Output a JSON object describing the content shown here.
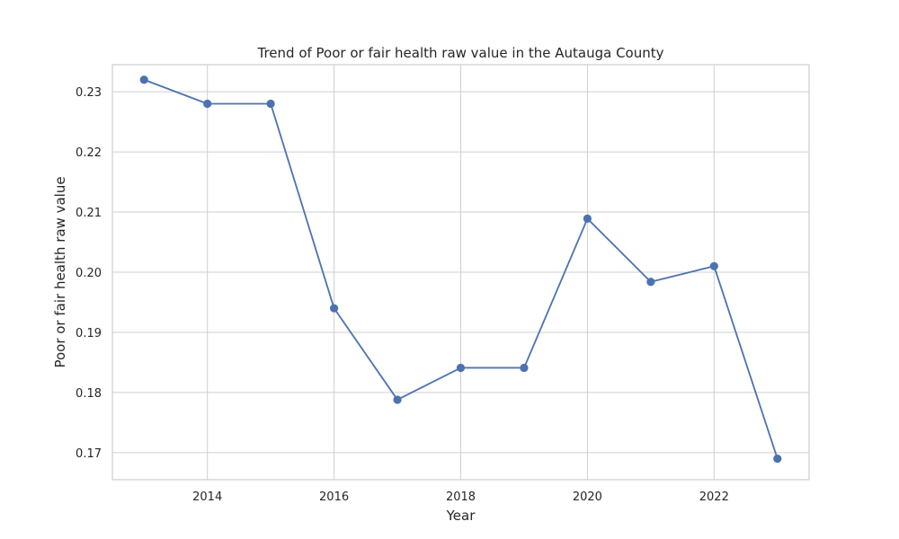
{
  "chart_data": {
    "type": "line",
    "title": "Trend of Poor or fair health raw value in the Autauga County",
    "xlabel": "Year",
    "ylabel": "Poor or fair health raw value",
    "x": [
      2013,
      2014,
      2015,
      2016,
      2017,
      2018,
      2019,
      2020,
      2021,
      2022,
      2023
    ],
    "series": [
      {
        "values": [
          0.232,
          0.228,
          0.228,
          0.194,
          0.1788,
          0.1841,
          0.1841,
          0.2089,
          0.1984,
          0.201,
          0.169
        ]
      }
    ],
    "xlim": [
      2012.5,
      2023.5
    ],
    "ylim": [
      0.1655,
      0.2345
    ],
    "x_ticks": [
      "2014",
      "2016",
      "2018",
      "2020",
      "2022"
    ],
    "y_ticks": [
      "0.17",
      "0.18",
      "0.19",
      "0.20",
      "0.21",
      "0.22",
      "0.23"
    ],
    "grid": true,
    "line_color": "#4c72b0",
    "grid_color": "#cfcfcf"
  }
}
